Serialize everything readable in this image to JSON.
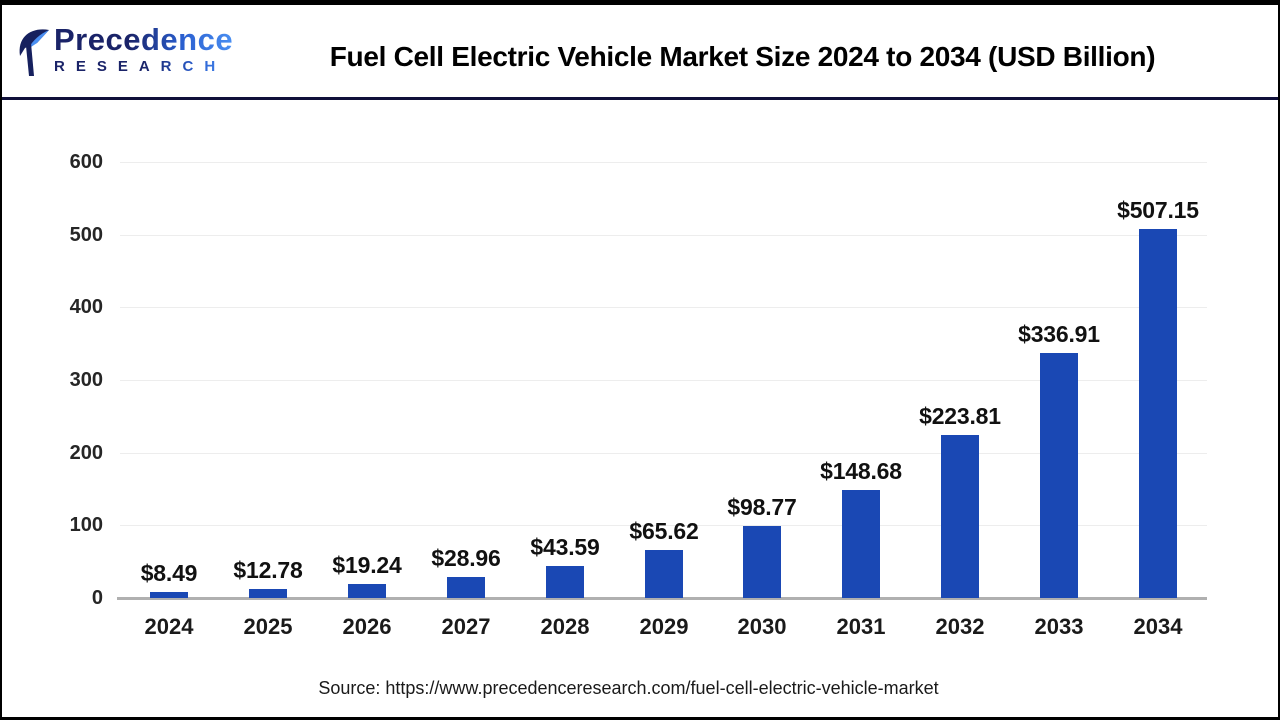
{
  "header": {
    "logo_brand": "Precedence",
    "logo_sub": "RESEARCH",
    "title": "Fuel Cell Electric Vehicle Market Size 2024 to 2034 (USD Billion)"
  },
  "chart_data": {
    "type": "bar",
    "title": "Fuel Cell Electric Vehicle Market Size 2024 to 2034 (USD Billion)",
    "categories": [
      "2024",
      "2025",
      "2026",
      "2027",
      "2028",
      "2029",
      "2030",
      "2031",
      "2032",
      "2033",
      "2034"
    ],
    "values": [
      8.49,
      12.78,
      19.24,
      28.96,
      43.59,
      65.62,
      98.77,
      148.68,
      223.81,
      336.91,
      507.15
    ],
    "value_labels": [
      "$8.49",
      "$12.78",
      "$19.24",
      "$28.96",
      "$43.59",
      "$65.62",
      "$98.77",
      "$148.68",
      "$223.81",
      "$336.91",
      "$507.15"
    ],
    "xlabel": "",
    "ylabel": "",
    "ylim": [
      0,
      600
    ],
    "yticks": [
      0,
      100,
      200,
      300,
      400,
      500,
      600
    ],
    "grid": true,
    "legend": "none",
    "bar_color": "#1a48b4"
  },
  "footer": {
    "source": "Source: https://www.precedenceresearch.com/fuel-cell-electric-vehicle-market"
  },
  "colors": {
    "bar": "#1a48b4",
    "gridline": "#ededed",
    "baseline": "#b0b0b0",
    "header_divider": "#10103a",
    "frame": "#000000",
    "logo_navy": "#1a2368",
    "logo_blue": "#4a8ff2"
  }
}
